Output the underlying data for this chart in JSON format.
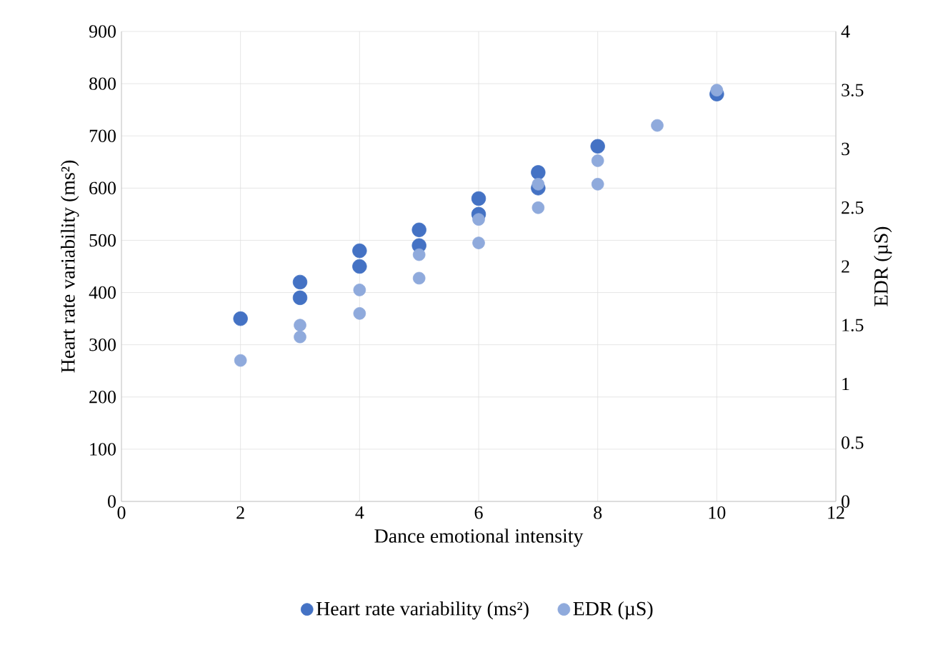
{
  "chart_data": {
    "type": "scatter",
    "xlabel": "Dance emotional intensity",
    "ylabel": "Heart rate variability (ms²)",
    "y2label": "EDR (µS)",
    "xlim": [
      0,
      12
    ],
    "xticks": [
      0,
      2,
      4,
      6,
      8,
      10,
      12
    ],
    "ylim": [
      0,
      900
    ],
    "yticks": [
      0,
      100,
      200,
      300,
      400,
      500,
      600,
      700,
      800,
      900
    ],
    "y2lim": [
      0,
      4
    ],
    "y2ticks": [
      0,
      0.5,
      1,
      1.5,
      2,
      2.5,
      3,
      3.5,
      4
    ],
    "grid": true,
    "legend": "bottom",
    "marker": "circle",
    "series": [
      {
        "name": "Heart rate variability (ms²)",
        "color": "#4472c4",
        "x": [
          2,
          3,
          3,
          4,
          4,
          5,
          5,
          6,
          6,
          7,
          7,
          8,
          10
        ],
        "values": [
          350,
          420,
          390,
          480,
          450,
          520,
          490,
          580,
          550,
          630,
          600,
          680,
          780
        ]
      },
      {
        "name": "EDR (µS)",
        "color": "#8faadc",
        "axis": "y2",
        "x": [
          2,
          3,
          3,
          4,
          4,
          5,
          5,
          6,
          6,
          7,
          7,
          8,
          8,
          9,
          10
        ],
        "values": [
          1.2,
          1.5,
          1.4,
          1.8,
          1.6,
          2.1,
          1.9,
          2.4,
          2.2,
          2.7,
          2.5,
          2.9,
          2.7,
          3.2,
          3.5
        ]
      }
    ]
  }
}
